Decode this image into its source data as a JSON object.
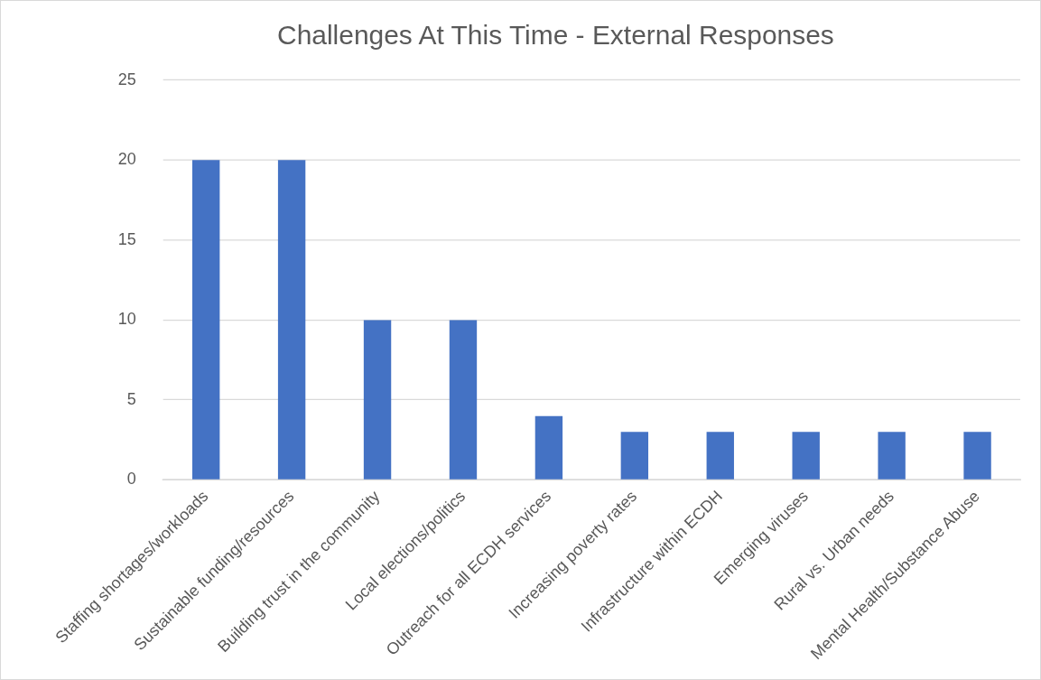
{
  "chart_data": {
    "type": "bar",
    "title": "Challenges At This Time - External Responses",
    "categories": [
      "Staffing shortages/workloads",
      "Sustainable funding/resources",
      "Building trust in the community",
      "Local elections/politics",
      "Outreach for all ECDH services",
      "Increasing poverty rates",
      "Infrastructure within ECDH",
      "Emerging viruses",
      "Rural vs. Urban needs",
      "Mental Health/Substance Abuse"
    ],
    "values": [
      20,
      20,
      10,
      10,
      4,
      3,
      3,
      3,
      3,
      3
    ],
    "color": "#4472c4",
    "ylim": [
      0,
      25
    ],
    "yticks": [
      0,
      5,
      10,
      15,
      20,
      25
    ],
    "grid": "y"
  }
}
